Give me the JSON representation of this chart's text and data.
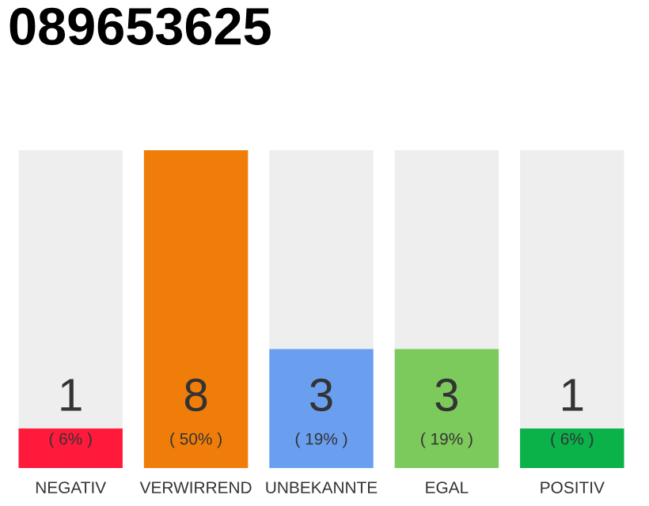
{
  "chart_data": {
    "type": "bar",
    "title": "089653625",
    "stacked": true,
    "categories": [
      "NEGATIV",
      "VERWIRREND",
      "UNBEKANNTE",
      "EGAL",
      "POSITIV"
    ],
    "series": [
      {
        "colors": [
          "#ff1a3c",
          "#f07d0a",
          "#6a9ff0",
          "#7dca5c",
          "#0bb24a"
        ],
        "values": [
          1,
          8,
          3,
          3,
          1
        ],
        "value_labels": [
          "1",
          "8",
          "3",
          "3",
          "1"
        ]
      },
      {
        "color": "#eeeeee",
        "values": [
          7,
          0,
          5,
          5,
          7
        ]
      }
    ],
    "annotations": [
      {
        "text": "( 6% )",
        "x": "NEGATIV",
        "y": 0
      },
      {
        "text": "( 50% )",
        "x": "VERWIRREND",
        "y": 0
      },
      {
        "text": "( 19% )",
        "x": "UNBEKANNTE",
        "y": 0
      },
      {
        "text": "( 19% )",
        "x": "EGAL",
        "y": 0
      },
      {
        "text": "( 6% )",
        "x": "POSITIV",
        "y": 0
      }
    ],
    "grid": false,
    "legend": false
  }
}
